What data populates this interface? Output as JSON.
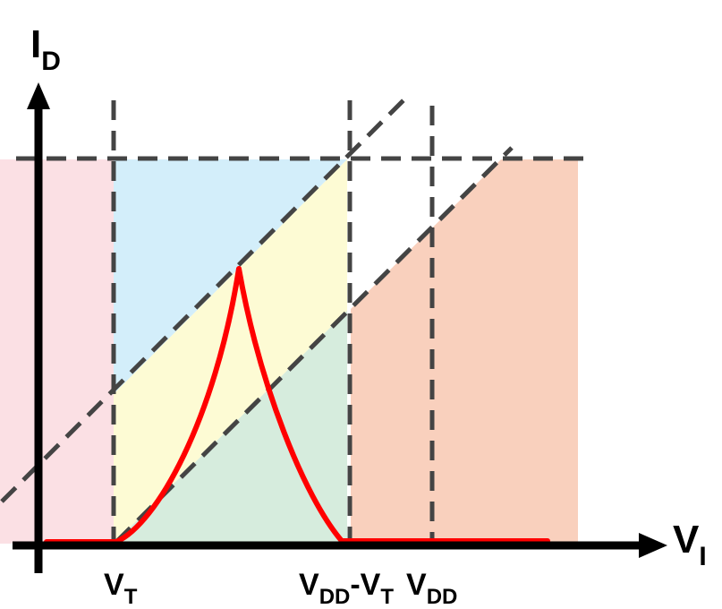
{
  "axes": {
    "y_label": "I",
    "y_label_sub": "D",
    "x_label": "V",
    "x_label_sub": "I"
  },
  "ticks": {
    "vt_main": "V",
    "vt_sub": "T",
    "vdd_vt_main1": "V",
    "vdd_vt_sub1": "DD",
    "vdd_vt_main2": "-V",
    "vdd_vt_sub2": "T",
    "vdd_main": "V",
    "vdd_sub": "DD"
  },
  "colors": {
    "pink_region": "#fbe0e4",
    "blue_region": "#d3eefa",
    "yellow_region": "#fdfbd4",
    "green_region": "#d6ecdd",
    "orange_region": "#f9d0bd",
    "dashed_line": "#444444",
    "current_curve": "#ff0000",
    "axis": "#000000"
  }
}
